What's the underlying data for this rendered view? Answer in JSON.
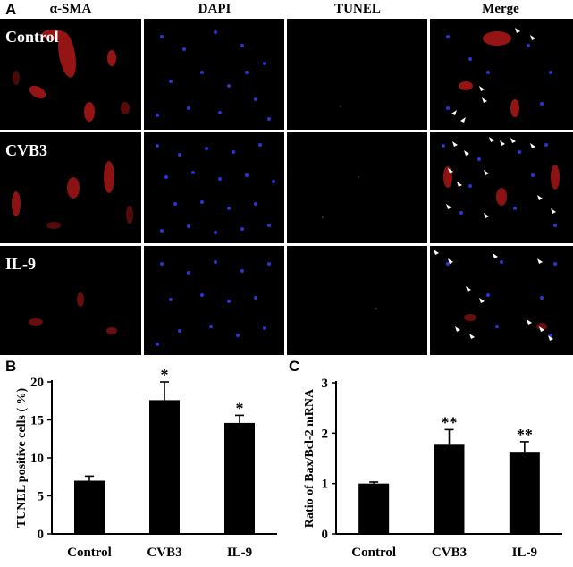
{
  "panel_a": {
    "letter": "A",
    "columns": [
      "α-SMA",
      "DAPI",
      "TUNEL",
      "Merge"
    ],
    "rows": [
      "Control",
      "CVB3",
      "IL-9"
    ],
    "colors": {
      "actin": "#b01818",
      "nuclei": "#2a34d8",
      "arrow": "#ffffff"
    }
  },
  "chart_data": [
    {
      "panel": "B",
      "type": "bar",
      "categories": [
        "Control",
        "CVB3",
        "IL-9"
      ],
      "values": [
        7.0,
        17.6,
        14.6
      ],
      "errors": [
        0.6,
        2.4,
        1.0
      ],
      "significance": [
        "",
        "*",
        "*"
      ],
      "ylabel": "TUNEL positive cells ( %)",
      "ylim": [
        0,
        20
      ],
      "yticks": [
        "0",
        "5",
        "10",
        "15",
        "20"
      ],
      "bar_color": "#000000"
    },
    {
      "panel": "C",
      "type": "bar",
      "categories": [
        "Control",
        "CVB3",
        "IL-9"
      ],
      "values": [
        1.0,
        1.77,
        1.63
      ],
      "errors": [
        0.03,
        0.3,
        0.2
      ],
      "significance": [
        "",
        "**",
        "**"
      ],
      "ylabel": "Ratio of Bax/Bcl-2 mRNA",
      "ylim": [
        0,
        3
      ],
      "yticks": [
        "0",
        "1",
        "2",
        "3"
      ],
      "bar_color": "#000000"
    }
  ]
}
